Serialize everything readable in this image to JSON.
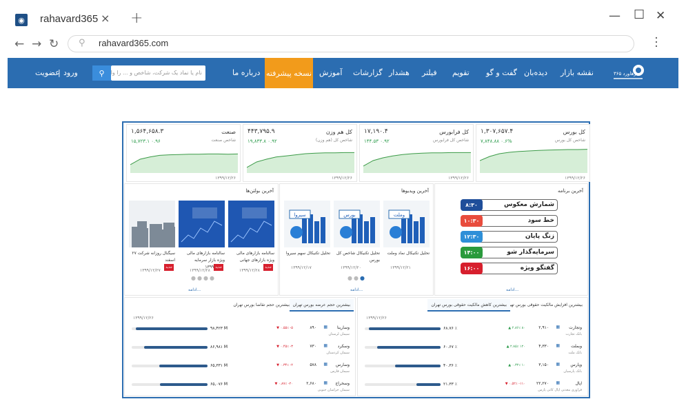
{
  "browser": {
    "tab_title": "rahavard365",
    "tab_close": "×",
    "new_tab": "+",
    "url": "rahavard365.com",
    "win_min": "—",
    "win_max": "☐",
    "win_close": "✕"
  },
  "nav": {
    "items": [
      "نقشه بازار",
      "دیده‌بان",
      "گفت و گو",
      "تقویم",
      "فیلتر",
      "هشدار",
      "گزارشات",
      "آموزش"
    ],
    "advanced": "نسخه پیشرفته",
    "about": "درباره ما",
    "search_placeholder": "نام یا نماد یک شرکت، شاخص و ... را وارد کنید",
    "login": "ورود",
    "separator": "|",
    "register": "عضویت",
    "logo_text": "رهاورد ۳۶۵"
  },
  "indices": [
    {
      "title": "کل بورس",
      "value": "۱,۳۰۷,۶۵۷.۴",
      "sub": "شاخص کل بورس",
      "change": "۷,۸۴۸.۸۸  ۰.۶%",
      "date": "۱۳۹۹/۱۲/۲۶"
    },
    {
      "title": "کل فرابورس",
      "value": "۱۷,۱۹۰.۴",
      "sub": "شاخص کل فرابورس",
      "change": "۱۴۴.۵۳  ۰.۹۲",
      "date": "۱۳۹۹/۱۲/۲۶"
    },
    {
      "title": "کل هم وزن",
      "value": "۴۴۳,۷۹۵.۹",
      "sub": "شاخص کل (هم وزن)",
      "change": "۱۹,۸۳۳.۸  ۰.۹۲",
      "date": "۱۳۹۹/۱۲/۲۶"
    },
    {
      "title": "صنعت",
      "value": "۱,۵۶۴,۶۵۸.۳",
      "sub": "شاخص صنعت",
      "change": "۱۵,۷۲۳.۱  ۰.۹۶",
      "date": "۱۳۹۹/۱۲/۲۶"
    }
  ],
  "programs": {
    "title": "آخرین برنامه",
    "items": [
      {
        "label": "شمارش معکوس",
        "time": "۸:۳۰",
        "color": "#1f4e9a"
      },
      {
        "label": "خط سود",
        "time": "۱۰:۳۰",
        "color": "#e84c3d"
      },
      {
        "label": "زنگ پایان",
        "time": "۱۲:۳۰",
        "color": "#2e8fd8"
      },
      {
        "label": "سرمایه‌گذار شو",
        "time": "۱۴:۰۰",
        "color": "#2a9a3c"
      },
      {
        "label": "گفتگو ویژه",
        "time": "۱۶:۰۰",
        "color": "#d71f2d"
      }
    ],
    "more": "ادامه..."
  },
  "videos": {
    "title": "آخرین ویدیوها",
    "items": [
      {
        "caption": "تحلیل تکنیکال نماد وملت",
        "date": "۱۳۹۹/۱۲/۲۱",
        "tag": "وملت"
      },
      {
        "caption": "تحلیل تکنیکال شاخص کل بورس",
        "date": "۱۳۹۹/۱۲/۲۰",
        "tag": "بورس"
      },
      {
        "caption": "تحلیل تکنیکال سهم سیروا",
        "date": "۱۳۹۹/۱۲/۱۷",
        "tag": "سیروا"
      }
    ],
    "more": "ادامه..."
  },
  "bulletins": {
    "title": "آخرین بولتن‌ها",
    "items": [
      {
        "caption": "سالنامه بازارهای مالی ویژه بازارهای جهانی",
        "tag": "جدید",
        "date": "۱۳۹۹/۱۲/۲۸"
      },
      {
        "caption": "سالنامه بازارهای مالی ویژه بازار سرمایه",
        "tag": "جدید",
        "date": "۱۳۹۹/۱۲/۲۸",
        "extra": "۱۳۹۹"
      },
      {
        "caption": "سیگنال روزانه شرکت ۲۷ اسفند",
        "tag": "جدید",
        "date": "۱۳۹۹/۱۲/۲۷"
      }
    ],
    "more": "ادامه..."
  },
  "ownership": {
    "tabs": [
      "بیشترین افزایش مالکیت حقوقی بورس تهران",
      "بیشترین کاهش مالکیت حقوقی بورس تهران"
    ],
    "date": "۱۳۹۹/۱۲/۲۶",
    "rows": [
      {
        "name": "وتجارت",
        "sub": "بانک تجارت",
        "price": "۲,۹۱۰",
        "chg": "▲ ۲.۸۶٪ ۸۰",
        "chg_dir": "up",
        "value": "۶۸.۷۶ ٪",
        "fill": 0.95
      },
      {
        "name": "وبملت",
        "sub": "بانک ملت",
        "price": "۴,۳۳۰",
        "chg": "▲ ۲.۸۵٪ ۱۲۰",
        "chg_dir": "up",
        "value": "۶۰.۶۷ ٪",
        "fill": 0.84
      },
      {
        "name": "وپارس",
        "sub": "بانک پارسیان",
        "price": "۳,۱۵۰",
        "chg": "▲ ۰.۳۲٪ ۱۰",
        "chg_dir": "up",
        "value": "۴۰.۳۶ ٪",
        "fill": 0.6
      },
      {
        "name": "اپال",
        "sub": "فراوری معدنی اپال کانی پارس",
        "price": "۲۲,۲۷۰",
        "chg": "▼ ۰.۵۲٪ -۱۱۰",
        "chg_dir": "down",
        "value": "۲۱.۳۳ ٪",
        "fill": 0.32
      }
    ]
  },
  "volume": {
    "tabs": [
      "بیشترین حجم عرضه بورس تهران",
      "بیشترین حجم تقاضا بورس تهران"
    ],
    "date": "۱۳۹۹/۱۲/۲۶",
    "rows": [
      {
        "name": "وسارینا",
        "sub": "سیمان لرستان",
        "price": "۸۹۰",
        "chg": "▼ ۰.۵۵٪ -۵",
        "chg_dir": "down",
        "value": "۹۸,۴۲۳ M",
        "fill": 0.95
      },
      {
        "name": "وسکرد",
        "sub": "سیمان کردستان",
        "price": "۷۳۰",
        "chg": "▼ ۰.۴۵٪ -۳",
        "chg_dir": "down",
        "value": "۸۶,۹۸۱ M",
        "fill": 0.84
      },
      {
        "name": "وسارس",
        "sub": "سیمان فارس",
        "price": "۵۷۸",
        "chg": "▼ ۰.۳۴٪ -۲",
        "chg_dir": "down",
        "value": "۶۵,۳۳۱ M",
        "fill": 0.64
      },
      {
        "name": "وسخراج",
        "sub": "سیمان خراسان جنوبی",
        "price": "۲,۶۸۰",
        "chg": "▼ ۰.۸۷٪ -۲۰",
        "chg_dir": "down",
        "value": "۶۵,۰۷۶ M",
        "fill": 0.63
      }
    ]
  },
  "colors": {
    "brand": "#2b6db1",
    "accent": "#f29b1b",
    "up": "#2a9a4a",
    "down": "#d71f2d"
  }
}
